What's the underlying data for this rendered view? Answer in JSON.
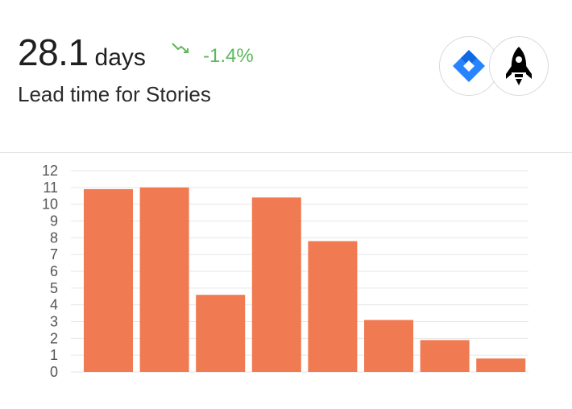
{
  "metric": {
    "value": "28.1",
    "unit": "days"
  },
  "trend": {
    "value": "-1.4%",
    "direction": "down",
    "color": "#5cb85c",
    "icon": "trend-down-icon"
  },
  "subtitle": "Lead time for Stories",
  "integrations": [
    {
      "name": "jira-logo",
      "color": "#2684ff"
    },
    {
      "name": "rocket-logo",
      "color": "#000000"
    }
  ],
  "chart_data": {
    "type": "bar",
    "categories": [
      "",
      "",
      "",
      "",
      "",
      "",
      "",
      ""
    ],
    "values": [
      10.9,
      11.0,
      4.6,
      10.4,
      7.8,
      3.1,
      1.9,
      0.8
    ],
    "ylim": [
      0,
      12
    ],
    "yticks": [
      "0",
      "1",
      "2",
      "3",
      "4",
      "5",
      "6",
      "7",
      "8",
      "9",
      "10",
      "11",
      "12"
    ],
    "grid": true,
    "bar_color": "#f07a52",
    "grid_color": "#e6e6e6"
  }
}
